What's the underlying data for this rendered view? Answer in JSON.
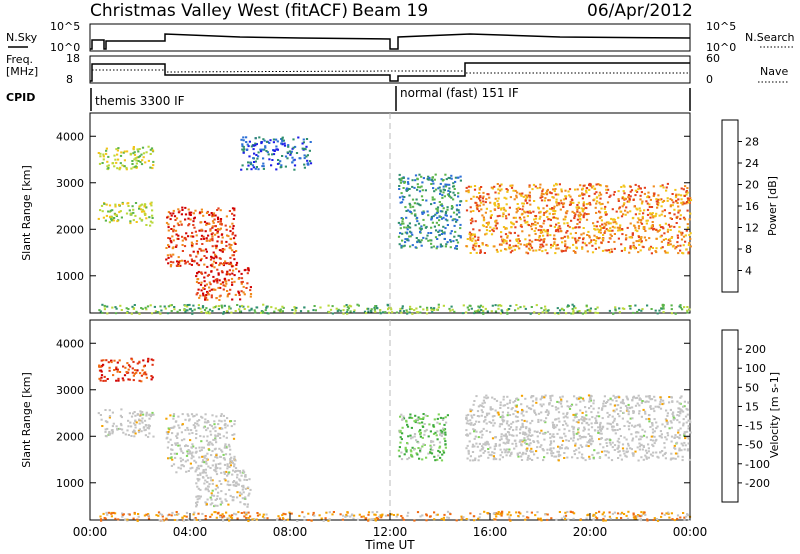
{
  "header": {
    "station": "Christmas Valley West (fitACF)",
    "beam": "Beam 19",
    "date": "06/Apr/2012"
  },
  "panels": {
    "nsky": {
      "label": "N.Sky",
      "tick_top": "10^5",
      "tick_bottom": "10^0"
    },
    "nsearch": {
      "label": "N.Search",
      "tick_top": "10^5",
      "tick_bottom": "10^0"
    },
    "freq": {
      "label_line1": "Freq.",
      "label_line2": "[MHz]",
      "tick_top": "18",
      "tick_bottom": "8"
    },
    "nave": {
      "label": "Nave",
      "tick_top": "60",
      "tick_bottom": "0"
    },
    "cpid": {
      "label": "CPID",
      "segments": [
        {
          "text": "themis 3300 IF"
        },
        {
          "text": "normal (fast) 151 IF"
        }
      ]
    }
  },
  "colors": {
    "power_scale": [
      "#1e1ee6",
      "#2c6fd6",
      "#2f8f6e",
      "#5ab44a",
      "#b9d83a",
      "#f2c418",
      "#f08a1c",
      "#e4401c",
      "#d00000"
    ],
    "velocity_scale": [
      "#1a1acc",
      "#2a3ad8",
      "#1f6a2a",
      "#3caa3c",
      "#7fd45a",
      "#c4c4c4",
      "#f5a300",
      "#f06a10",
      "#e03010",
      "#d00000"
    ],
    "gray_scatter": "#c3c3c3"
  },
  "chart_data": [
    {
      "type": "heatmap",
      "quantity": "power",
      "xlabel": "",
      "ylabel": "Slant Range [km]",
      "xlim_hours": [
        0,
        24
      ],
      "ylim": [
        200,
        4500
      ],
      "yticks": [
        "1000",
        "2000",
        "3000",
        "4000"
      ],
      "colorbar": {
        "label": "Power [dB]",
        "ticks": [
          "4",
          "8",
          "12",
          "16",
          "20",
          "24",
          "28"
        ]
      },
      "features": [
        {
          "t0": 0.3,
          "t1": 2.5,
          "r0": 3300,
          "r1": 3800,
          "level": 4
        },
        {
          "t0": 0.3,
          "t1": 2.5,
          "r0": 2100,
          "r1": 2600,
          "level": 4
        },
        {
          "t0": 3.0,
          "t1": 5.8,
          "r0": 1200,
          "r1": 2500,
          "level": 7
        },
        {
          "t0": 4.2,
          "t1": 6.4,
          "r0": 500,
          "r1": 1300,
          "level": 7
        },
        {
          "t0": 6.0,
          "t1": 8.8,
          "r0": 3300,
          "r1": 4000,
          "level": 1
        },
        {
          "t0": 12.3,
          "t1": 14.8,
          "r0": 1600,
          "r1": 3200,
          "level": 2
        },
        {
          "t0": 15.0,
          "t1": 24.0,
          "r0": 1500,
          "r1": 3000,
          "level": 6
        },
        {
          "t0": 0.3,
          "t1": 24.0,
          "r0": 200,
          "r1": 400,
          "level": 3
        }
      ]
    },
    {
      "type": "heatmap",
      "quantity": "velocity",
      "xlabel": "Time UT",
      "ylabel": "Slant Range [km]",
      "xlim_hours": [
        0,
        24
      ],
      "ylim": [
        200,
        4500
      ],
      "xticks": [
        "00:00",
        "04:00",
        "08:00",
        "12:00",
        "16:00",
        "20:00",
        "00:00"
      ],
      "yticks": [
        "1000",
        "2000",
        "3000",
        "4000"
      ],
      "colorbar": {
        "label": "Velocity [m s-1]",
        "ticks": [
          "200",
          "100",
          "50",
          "15",
          "-15",
          "-50",
          "-100",
          "-200"
        ]
      },
      "features": [
        {
          "t0": 0.3,
          "t1": 2.5,
          "r0": 3200,
          "r1": 3700,
          "level": 8
        },
        {
          "t0": 0.3,
          "t1": 2.5,
          "r0": 2000,
          "r1": 2600,
          "level": 5
        },
        {
          "t0": 3.0,
          "t1": 5.8,
          "r0": 1200,
          "r1": 2500,
          "level": 5
        },
        {
          "t0": 4.2,
          "t1": 6.4,
          "r0": 500,
          "r1": 1300,
          "level": 5
        },
        {
          "t0": 12.3,
          "t1": 14.3,
          "r0": 1500,
          "r1": 2500,
          "level": 4
        },
        {
          "t0": 15.0,
          "t1": 24.0,
          "r0": 1500,
          "r1": 2900,
          "level": 5
        },
        {
          "t0": 0.3,
          "t1": 24.0,
          "r0": 200,
          "r1": 400,
          "level": 6
        }
      ]
    }
  ]
}
